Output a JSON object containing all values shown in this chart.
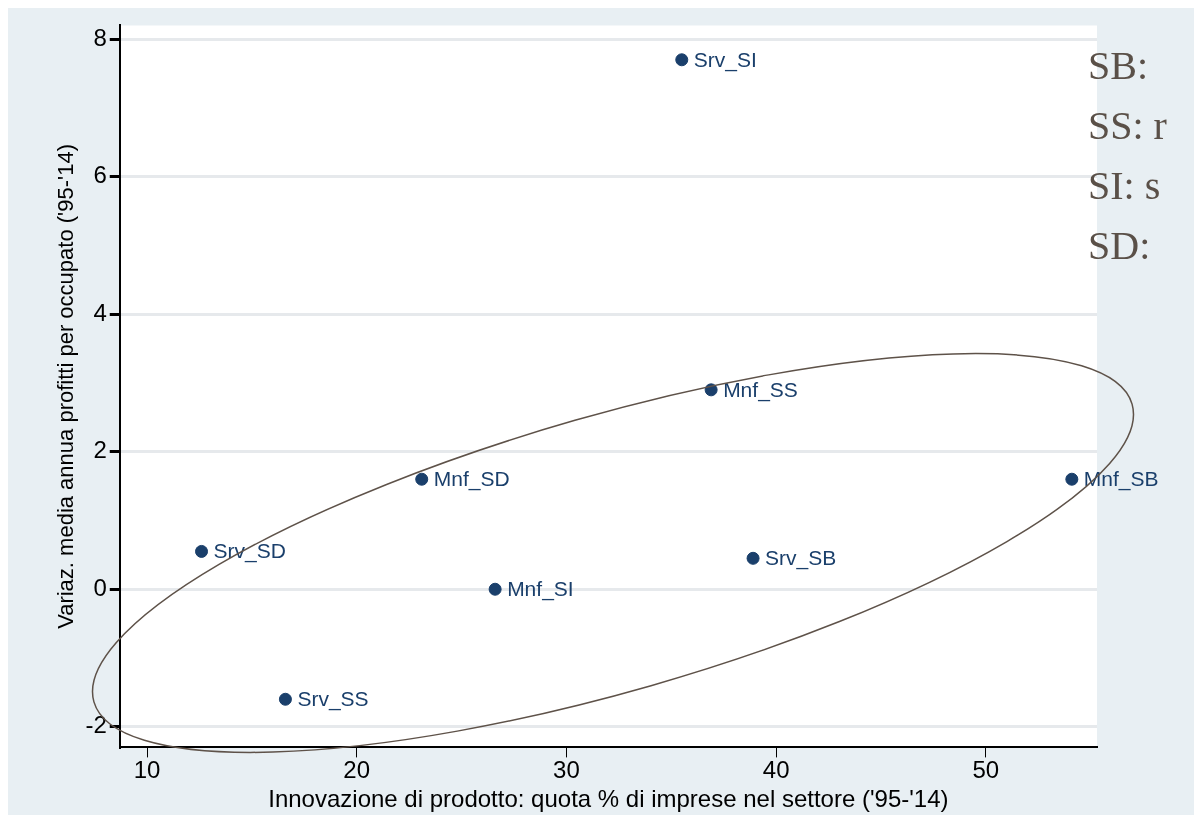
{
  "chart_data": {
    "type": "scatter",
    "xlabel": "Innovazione di prodotto: quota % di imprese nel settore ('95-'14)",
    "ylabel": "Variaz. media annua profitti per occupato ('95-'14)",
    "xlim": [
      8.7,
      55.3
    ],
    "xticks": [
      10,
      20,
      30,
      40,
      50
    ],
    "ylim": [
      -2.3,
      8.2
    ],
    "yticks": [
      -2,
      0,
      2,
      4,
      6,
      8
    ],
    "grid": "y",
    "marker": "circle",
    "series": [
      {
        "name": "Srv_SI",
        "color": "#1a3f6b",
        "x": [
          35.5
        ],
        "values": [
          7.7
        ]
      },
      {
        "name": "Mnf_SS",
        "color": "#1a3f6b",
        "x": [
          36.9
        ],
        "values": [
          2.9
        ]
      },
      {
        "name": "Mnf_SD",
        "color": "#1a3f6b",
        "x": [
          23.1
        ],
        "values": [
          1.6
        ]
      },
      {
        "name": "Mnf_SB",
        "color": "#1a3f6b",
        "x": [
          54.1
        ],
        "values": [
          1.6
        ]
      },
      {
        "name": "Srv_SD",
        "color": "#1a3f6b",
        "x": [
          12.6
        ],
        "values": [
          0.55
        ]
      },
      {
        "name": "Srv_SB",
        "color": "#1a3f6b",
        "x": [
          38.9
        ],
        "values": [
          0.45
        ]
      },
      {
        "name": "Mnf_SI",
        "color": "#1a3f6b",
        "x": [
          26.6
        ],
        "values": [
          0
        ]
      },
      {
        "name": "Srv_SS",
        "color": "#1a3f6b",
        "x": [
          16.6
        ],
        "values": [
          -1.6
        ]
      }
    ],
    "annotations": [
      "SB:",
      "SS: r",
      "SI: s",
      "SD:"
    ]
  }
}
